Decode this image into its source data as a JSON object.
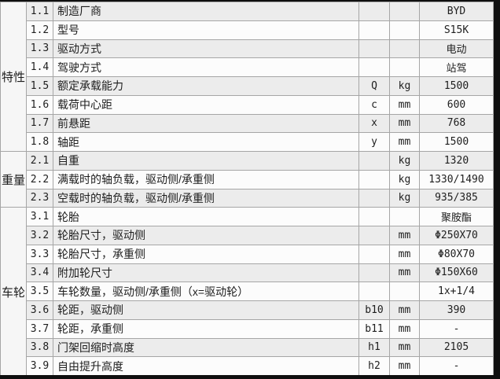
{
  "colors": {
    "photo_edge": "#0f0f0f",
    "row_shade": "#ececec",
    "row_plain": "#fcfcfc",
    "category_bg": "#f6f6f6",
    "border": "#a6a6a6",
    "text": "#1e1e1e"
  },
  "table": {
    "groups": [
      {
        "label": "特性",
        "rows": [
          {
            "no": "1.1",
            "desc": "制造厂商",
            "sym": "",
            "unit": "",
            "value": "BYD"
          },
          {
            "no": "1.2",
            "desc": "型号",
            "sym": "",
            "unit": "",
            "value": "S15K"
          },
          {
            "no": "1.3",
            "desc": "驱动方式",
            "sym": "",
            "unit": "",
            "value": "电动"
          },
          {
            "no": "1.4",
            "desc": "驾驶方式",
            "sym": "",
            "unit": "",
            "value": "站驾"
          },
          {
            "no": "1.5",
            "desc": "额定承载能力",
            "sym": "Q",
            "unit": "kg",
            "value": "1500"
          },
          {
            "no": "1.6",
            "desc": "载荷中心距",
            "sym": "c",
            "unit": "mm",
            "value": "600"
          },
          {
            "no": "1.7",
            "desc": "前悬距",
            "sym": "x",
            "unit": "mm",
            "value": "768"
          },
          {
            "no": "1.8",
            "desc": "轴距",
            "sym": "y",
            "unit": "mm",
            "value": "1500"
          }
        ]
      },
      {
        "label": "重量",
        "rows": [
          {
            "no": "2.1",
            "desc": "自重",
            "sym": "",
            "unit": "kg",
            "value": "1320"
          },
          {
            "no": "2.2",
            "desc": "满载时的轴负载，驱动侧/承重侧",
            "sym": "",
            "unit": "kg",
            "value": "1330/1490"
          },
          {
            "no": "2.3",
            "desc": "空载时的轴负载，驱动侧/承重侧",
            "sym": "",
            "unit": "kg",
            "value": "935/385"
          }
        ]
      },
      {
        "label": "车轮",
        "rows": [
          {
            "no": "3.1",
            "desc": "轮胎",
            "sym": "",
            "unit": "",
            "value": "聚胺酯"
          },
          {
            "no": "3.2",
            "desc": "轮胎尺寸，驱动侧",
            "sym": "",
            "unit": "mm",
            "value": "Φ250X70"
          },
          {
            "no": "3.3",
            "desc": "轮胎尺寸，承重侧",
            "sym": "",
            "unit": "mm",
            "value": "Φ80X70"
          },
          {
            "no": "3.4",
            "desc": "附加轮尺寸",
            "sym": "",
            "unit": "mm",
            "value": "Φ150X60"
          },
          {
            "no": "3.5",
            "desc": "车轮数量，驱动侧/承重侧（x=驱动轮）",
            "sym": "",
            "unit": "",
            "value": "1x+1/4"
          },
          {
            "no": "3.6",
            "desc": "轮距，驱动侧",
            "sym": "b10",
            "unit": "mm",
            "value": "390"
          },
          {
            "no": "3.7",
            "desc": "轮距，承重侧",
            "sym": "b11",
            "unit": "mm",
            "value": "-"
          },
          {
            "no": "3.8",
            "desc": "门架回缩时高度",
            "sym": "h1",
            "unit": "mm",
            "value": "2105"
          },
          {
            "no": "3.9",
            "desc": "自由提升高度",
            "sym": "h2",
            "unit": "mm",
            "value": "-"
          }
        ]
      }
    ]
  }
}
